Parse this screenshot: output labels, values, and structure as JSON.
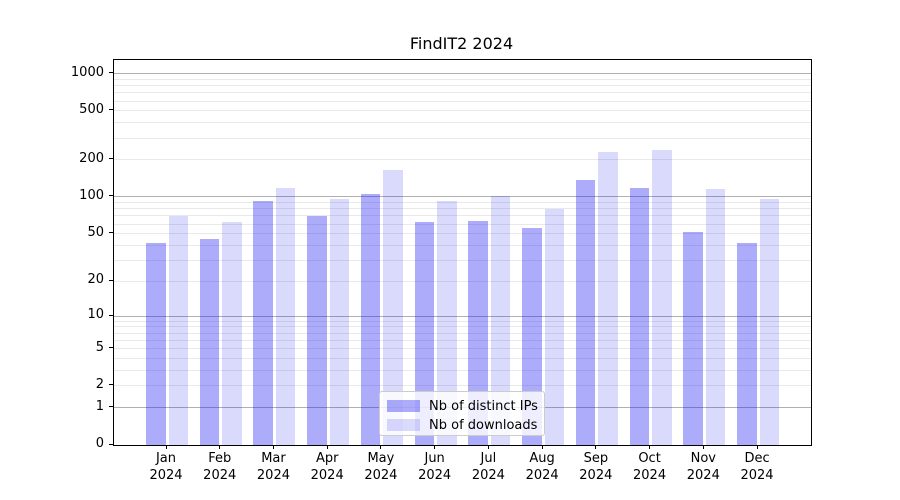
{
  "chart_data": {
    "type": "bar",
    "title": "FindIT2 2024",
    "categories": [
      "Jan",
      "Feb",
      "Mar",
      "Apr",
      "May",
      "Jun",
      "Jul",
      "Aug",
      "Sep",
      "Oct",
      "Nov",
      "Dec"
    ],
    "category_year": "2024",
    "series": [
      {
        "name": "Nb of distinct IPs",
        "color": "rgba(25,25,240,0.36)",
        "values": [
          42,
          45,
          92,
          70,
          106,
          62,
          63,
          56,
          137,
          118,
          52,
          42
        ]
      },
      {
        "name": "Nb of downloads",
        "color": "rgba(25,25,240,0.16)",
        "values": [
          70,
          62,
          119,
          97,
          165,
          93,
          101,
          80,
          232,
          240,
          116,
          97
        ]
      }
    ],
    "yscale": "log1p",
    "ylim": [
      0,
      1290
    ],
    "yticks": [
      0,
      1,
      2,
      5,
      10,
      20,
      50,
      100,
      200,
      500,
      1000
    ],
    "major_grid_values": [
      1,
      10,
      100,
      1000
    ],
    "grid": true,
    "legend_position": "lower center",
    "colors": {
      "major_grid": "#b0b0b0",
      "minor_grid": "#e9e9e9",
      "axis": "#000000",
      "background": "#ffffff"
    }
  }
}
